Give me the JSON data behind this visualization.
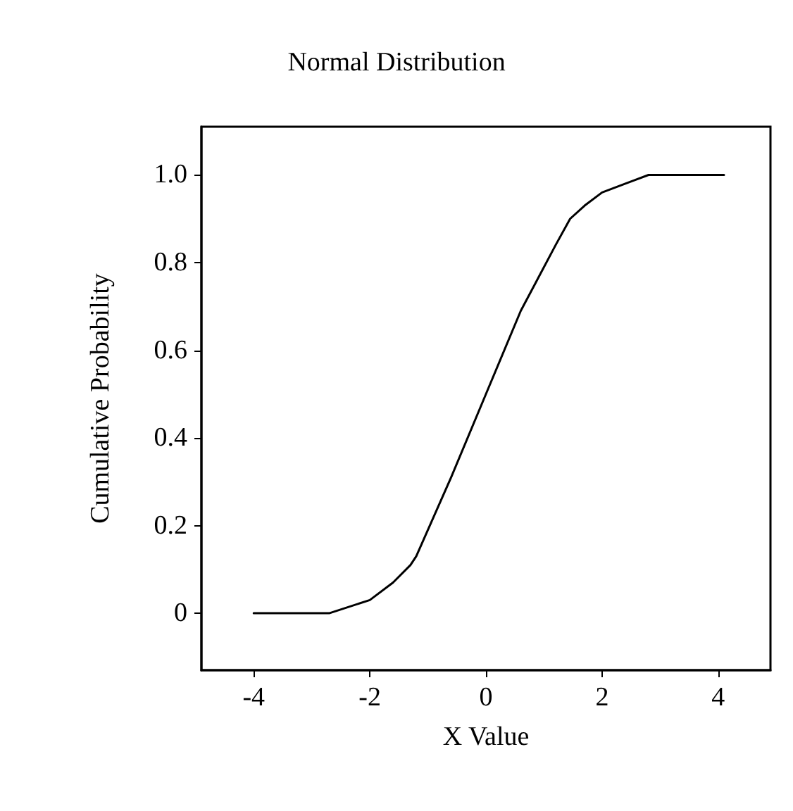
{
  "chart_data": {
    "type": "line",
    "title": "Normal Distribution",
    "xlabel": "X Value",
    "ylabel": "Cumulative Probability",
    "x": [
      -4,
      -2.7,
      -2,
      -1.6,
      -1.3,
      -1.2,
      -0.6,
      0,
      0.6,
      1.2,
      1.45,
      1.7,
      2,
      2.4,
      2.8,
      4.1
    ],
    "series": [
      {
        "color": "#000000",
        "values": [
          0,
          0,
          0.03,
          0.07,
          0.11,
          0.13,
          0.31,
          0.5,
          0.69,
          0.84,
          0.9,
          0.93,
          0.96,
          0.98,
          1.0,
          1.0
        ]
      }
    ],
    "xlim": [
      -4.9,
      4.9
    ],
    "xticks": [
      -4,
      -2,
      0,
      2,
      4
    ],
    "ylim": [
      -0.13,
      1.11
    ],
    "yticks": [
      {
        "value": 0,
        "label": "0"
      },
      0.2,
      0.4,
      0.6,
      0.8,
      {
        "value": 1,
        "label": "1.0"
      }
    ],
    "grid": false,
    "marker": "none",
    "line_style": "solid"
  }
}
